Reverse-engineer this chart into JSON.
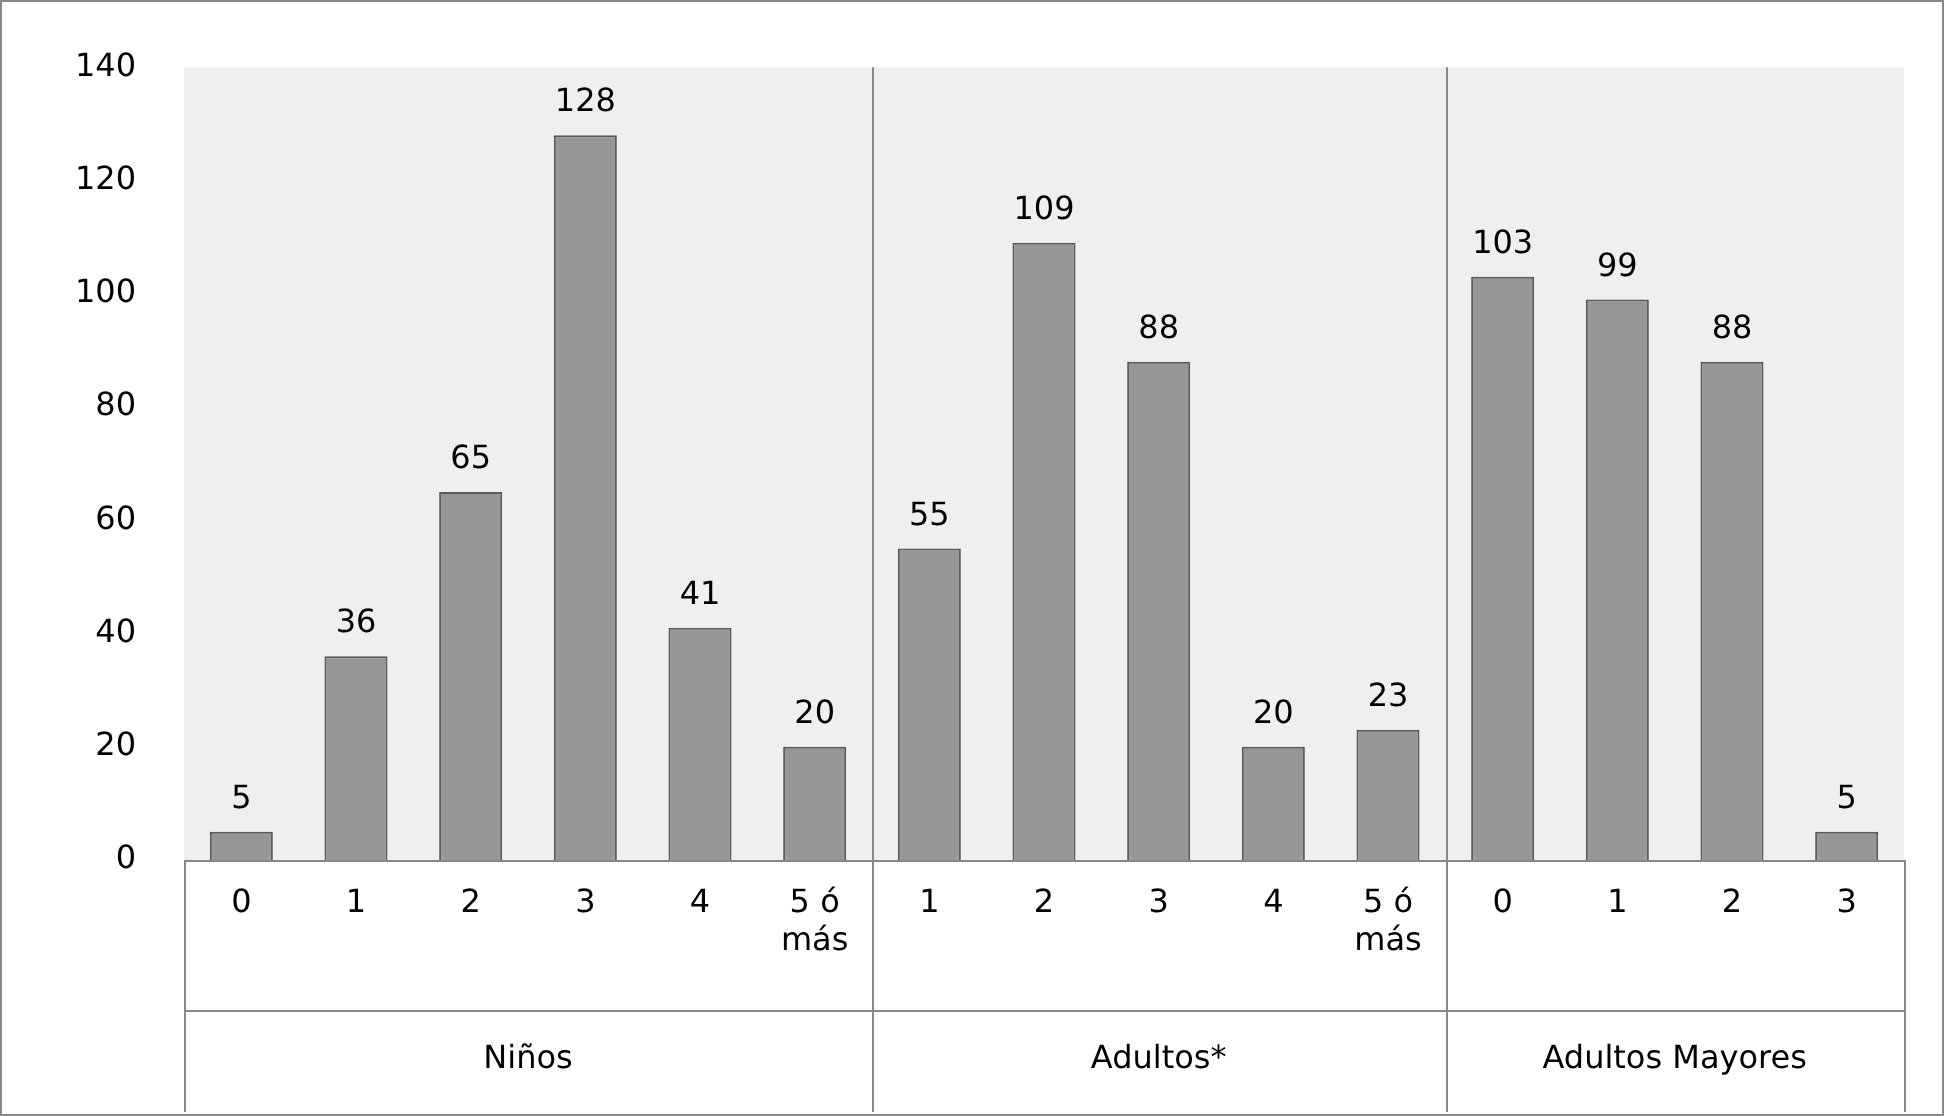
{
  "chart_data": {
    "type": "bar",
    "categories": [
      "0",
      "1",
      "2",
      "3",
      "4",
      "5 ó más",
      "1",
      "2",
      "3",
      "4",
      "5 ó más",
      "0",
      "1",
      "2",
      "3"
    ],
    "values": [
      5,
      36,
      65,
      128,
      41,
      20,
      55,
      109,
      88,
      20,
      23,
      103,
      99,
      88,
      5
    ],
    "color": "#969696",
    "ylim": [
      0,
      140
    ],
    "yticks": [
      0,
      20,
      40,
      60,
      80,
      100,
      120,
      140
    ],
    "grid": false,
    "legend": false,
    "data_labels": true,
    "annotations": [
      "Niños",
      "Adultos*",
      "Adultos Mayores"
    ]
  }
}
